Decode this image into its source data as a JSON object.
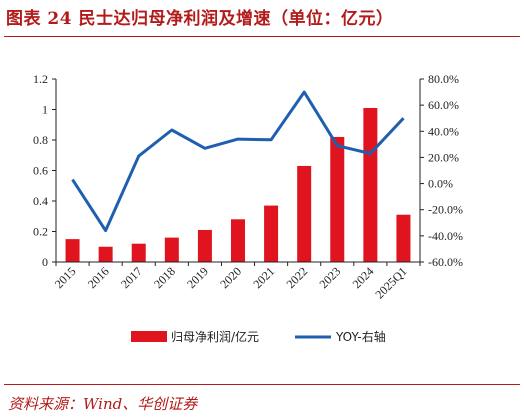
{
  "header": {
    "title": "图表 24   民士达归母净利润及增速（单位：亿元）"
  },
  "footer": {
    "source": "资料来源：Wind、华创证券"
  },
  "colors": {
    "bar": "#e0141e",
    "line": "#1f5fb0",
    "accent": "#b31b1b"
  },
  "chart_data": {
    "type": "bar+line",
    "categories": [
      "2015",
      "2016",
      "2017",
      "2018",
      "2019",
      "2020",
      "2021",
      "2022",
      "2023",
      "2024",
      "2025Q1"
    ],
    "series": [
      {
        "name": "归母净利润/亿元",
        "type": "bar",
        "axis": "left",
        "values": [
          0.15,
          0.1,
          0.12,
          0.16,
          0.21,
          0.28,
          0.37,
          0.63,
          0.82,
          1.01,
          0.31
        ]
      },
      {
        "name": "YOY-右轴",
        "type": "line",
        "axis": "right",
        "values": [
          3.0,
          -36.0,
          21.0,
          41.0,
          27.0,
          34.0,
          33.5,
          70.0,
          29.0,
          23.0,
          50.0
        ]
      }
    ],
    "y_left": {
      "min": 0,
      "max": 1.2,
      "ticks": [
        "0",
        "0.2",
        "0.4",
        "0.6",
        "0.8",
        "1",
        "1.2"
      ]
    },
    "y_right": {
      "min": -60,
      "max": 80,
      "ticks": [
        "-60.0%",
        "-40.0%",
        "-20.0%",
        "0.0%",
        "20.0%",
        "40.0%",
        "60.0%",
        "80.0%"
      ]
    },
    "legend_position": "bottom",
    "grid": false
  }
}
